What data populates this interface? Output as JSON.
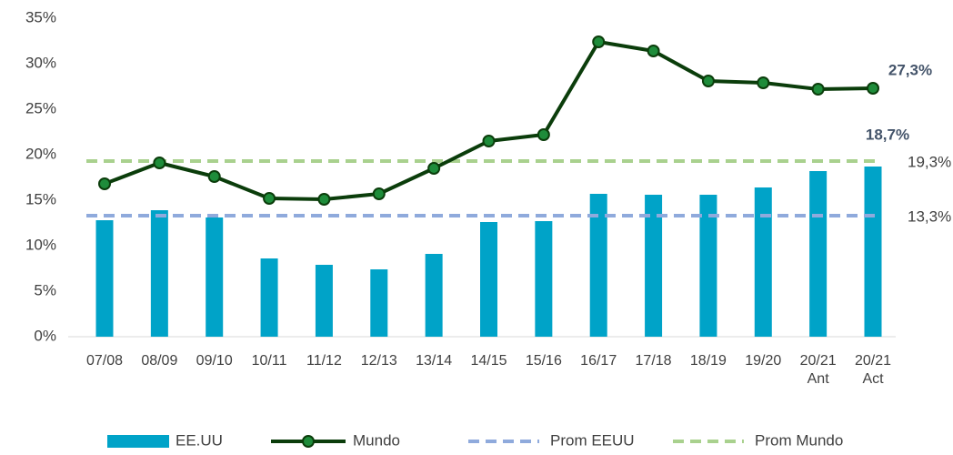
{
  "chart_data": {
    "type": "bar_line",
    "categories": [
      "07/08",
      "08/09",
      "09/10",
      "10/11",
      "11/12",
      "12/13",
      "13/14",
      "14/15",
      "15/16",
      "16/17",
      "17/18",
      "18/19",
      "19/20",
      "20/21 Ant",
      "20/21 Act"
    ],
    "series": [
      {
        "name": "EE.UU",
        "type": "bar",
        "color": "#00a3c8",
        "values": [
          12.8,
          13.9,
          13.1,
          8.6,
          7.9,
          7.4,
          9.1,
          12.6,
          12.7,
          15.7,
          15.6,
          15.6,
          16.4,
          18.2,
          18.7
        ],
        "value_labels": [
          null,
          null,
          null,
          null,
          null,
          null,
          null,
          null,
          null,
          null,
          null,
          null,
          null,
          null,
          "18,7%"
        ]
      },
      {
        "name": "Mundo",
        "type": "line",
        "color": "#0b3d0b",
        "marker_color": "#1e8c3a",
        "values": [
          16.8,
          19.1,
          17.6,
          15.2,
          15.1,
          15.7,
          18.5,
          21.5,
          22.2,
          32.4,
          31.4,
          28.1,
          27.9,
          27.2,
          27.3
        ],
        "value_labels": [
          null,
          null,
          null,
          null,
          null,
          null,
          null,
          null,
          null,
          null,
          null,
          null,
          null,
          null,
          "27,3%"
        ]
      }
    ],
    "reference_lines": [
      {
        "name": "Prom EEUU",
        "value": 13.3,
        "value_label": "13,3%",
        "color": "#8faadc"
      },
      {
        "name": "Prom Mundo",
        "value": 19.3,
        "value_label": "19,3%",
        "color": "#a9d18e"
      }
    ],
    "ylim": [
      0,
      35
    ],
    "yticks": [
      {
        "value": 0,
        "label": "0%"
      },
      {
        "value": 5,
        "label": "5%"
      },
      {
        "value": 10,
        "label": "10%"
      },
      {
        "value": 15,
        "label": "15%"
      },
      {
        "value": 20,
        "label": "20%"
      },
      {
        "value": 25,
        "label": "25%"
      },
      {
        "value": 30,
        "label": "30%"
      },
      {
        "value": 35,
        "label": "35%"
      }
    ],
    "legend": "bottom"
  }
}
